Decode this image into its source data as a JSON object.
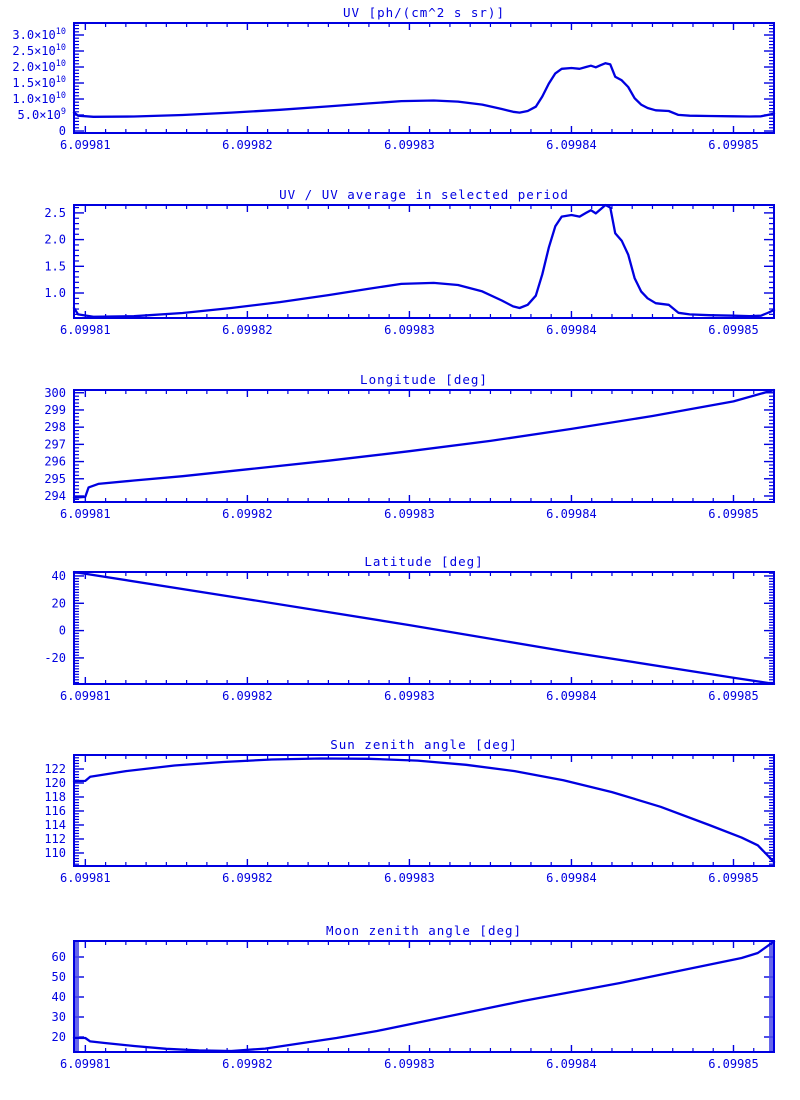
{
  "accent_color": "#0000e0",
  "background_color": "#ffffff",
  "chart_data": [
    {
      "type": "line",
      "title": "UV [ph/(cm^2 s sr)]",
      "xlabel": "",
      "ylabel": "",
      "xlim": [
        6.0998093,
        6.0998525
      ],
      "ylim": [
        -620000000.0,
        33750000000.0
      ],
      "xticks": {
        "major": [
          6.09981,
          6.09982,
          6.09983,
          6.09984,
          6.09985
        ],
        "labels": [
          "6.09981",
          "6.09982",
          "6.09983",
          "6.09984",
          "6.09985"
        ],
        "minor_per_major": 8
      },
      "yticks": {
        "major": [
          0,
          5000000000.0,
          10000000000.0,
          15000000000.0,
          20000000000.0,
          25000000000.0,
          30000000000.0
        ],
        "labels": [
          "0",
          "5.0×10^9",
          "1.0×10^10",
          "1.5×10^10",
          "2.0×10^10",
          "2.5×10^10",
          "3.0×10^10"
        ],
        "minor_step": 1000000000.0
      },
      "series": [
        {
          "name": "UV",
          "points": [
            [
              6.0998093,
              5760000000.0
            ],
            [
              6.09980955,
              4800000000.0
            ],
            [
              6.0998105,
              4440000000.0
            ],
            [
              6.099813,
              4520000000.0
            ],
            [
              6.099816,
              5000000000.0
            ],
            [
              6.099819,
              5760000000.0
            ],
            [
              6.099822,
              6640000000.0
            ],
            [
              6.099825,
              7680000000.0
            ],
            [
              6.0998275,
              8640000000.0
            ],
            [
              6.0998295,
              9360000000.0
            ],
            [
              6.0998315,
              9520000000.0
            ],
            [
              6.099833,
              9200000000.0
            ],
            [
              6.0998345,
              8240000000.0
            ],
            [
              6.0998357,
              6880000000.0
            ],
            [
              6.0998364,
              6000000000.0
            ],
            [
              6.0998368,
              5760000000.0
            ],
            [
              6.0998373,
              6240000000.0
            ],
            [
              6.0998378,
              7600000000.0
            ],
            [
              6.0998382,
              10800000000.0
            ],
            [
              6.0998386,
              14800000000.0
            ],
            [
              6.099839,
              18000000000.0
            ],
            [
              6.0998394,
              19440000000.0
            ],
            [
              6.09984,
              19680000000.0
            ],
            [
              6.0998405,
              19440000000.0
            ],
            [
              6.0998409,
              20000000000.0
            ],
            [
              6.0998412,
              20400000000.0
            ],
            [
              6.0998415,
              19920000000.0
            ],
            [
              6.0998418,
              20560000000.0
            ],
            [
              6.0998421,
              21200000000.0
            ],
            [
              6.0998424,
              20800000000.0
            ],
            [
              6.0998427,
              16960000000.0
            ],
            [
              6.0998431,
              15840000000.0
            ],
            [
              6.0998435,
              13760000000.0
            ],
            [
              6.0998439,
              10240000000.0
            ],
            [
              6.0998443,
              8240000000.0
            ],
            [
              6.0998447,
              7200000000.0
            ],
            [
              6.0998452,
              6480000000.0
            ],
            [
              6.099846,
              6240000000.0
            ],
            [
              6.0998466,
              5040000000.0
            ],
            [
              6.0998473,
              4800000000.0
            ],
            [
              6.0998485,
              4680000000.0
            ],
            [
              6.09985,
              4600000000.0
            ],
            [
              6.099851,
              4520000000.0
            ],
            [
              6.0998517,
              4600000000.0
            ],
            [
              6.0998521,
              5000000000.0
            ],
            [
              6.0998525,
              5440000000.0
            ]
          ]
        }
      ]
    },
    {
      "type": "line",
      "title": "UV / UV average in selected period",
      "xlabel": "",
      "ylabel": "",
      "xlim": [
        6.0998093,
        6.0998525
      ],
      "ylim": [
        0.532,
        2.648
      ],
      "xticks": {
        "major": [
          6.09981,
          6.09982,
          6.09983,
          6.09984,
          6.09985
        ],
        "labels": [
          "6.09981",
          "6.09982",
          "6.09983",
          "6.09984",
          "6.09985"
        ],
        "minor_per_major": 8
      },
      "yticks": {
        "major": [
          1.0,
          1.5,
          2.0,
          2.5
        ],
        "labels": [
          "1.0",
          "1.5",
          "2.0",
          "2.5"
        ],
        "minor_step": 0.1
      },
      "series": [
        {
          "name": "UV ratio",
          "points": [
            [
              6.0998093,
              0.72
            ],
            [
              6.09980955,
              0.6
            ],
            [
              6.0998105,
              0.555
            ],
            [
              6.099813,
              0.565
            ],
            [
              6.099816,
              0.625
            ],
            [
              6.099819,
              0.72
            ],
            [
              6.099822,
              0.83
            ],
            [
              6.099825,
              0.96
            ],
            [
              6.0998275,
              1.08
            ],
            [
              6.0998295,
              1.17
            ],
            [
              6.0998315,
              1.19
            ],
            [
              6.099833,
              1.15
            ],
            [
              6.0998345,
              1.03
            ],
            [
              6.0998357,
              0.86
            ],
            [
              6.0998364,
              0.75
            ],
            [
              6.0998368,
              0.72
            ],
            [
              6.0998373,
              0.78
            ],
            [
              6.0998378,
              0.95
            ],
            [
              6.0998382,
              1.35
            ],
            [
              6.0998386,
              1.85
            ],
            [
              6.099839,
              2.25
            ],
            [
              6.0998394,
              2.43
            ],
            [
              6.09984,
              2.46
            ],
            [
              6.0998405,
              2.43
            ],
            [
              6.0998409,
              2.5
            ],
            [
              6.0998412,
              2.55
            ],
            [
              6.0998415,
              2.49
            ],
            [
              6.0998418,
              2.57
            ],
            [
              6.0998421,
              2.65
            ],
            [
              6.0998424,
              2.6
            ],
            [
              6.0998427,
              2.12
            ],
            [
              6.0998431,
              1.98
            ],
            [
              6.0998435,
              1.72
            ],
            [
              6.0998439,
              1.28
            ],
            [
              6.0998443,
              1.03
            ],
            [
              6.0998447,
              0.9
            ],
            [
              6.0998452,
              0.81
            ],
            [
              6.099846,
              0.78
            ],
            [
              6.0998466,
              0.63
            ],
            [
              6.0998473,
              0.6
            ],
            [
              6.0998485,
              0.585
            ],
            [
              6.09985,
              0.575
            ],
            [
              6.099851,
              0.565
            ],
            [
              6.0998517,
              0.575
            ],
            [
              6.0998521,
              0.625
            ],
            [
              6.0998525,
              0.68
            ]
          ]
        }
      ]
    },
    {
      "type": "line",
      "title": "Longitude [deg]",
      "xlabel": "",
      "ylabel": "",
      "xlim": [
        6.0998093,
        6.0998525
      ],
      "ylim": [
        293.65,
        300.16
      ],
      "xticks": {
        "major": [
          6.09981,
          6.09982,
          6.09983,
          6.09984,
          6.09985
        ],
        "labels": [
          "6.09981",
          "6.09982",
          "6.09983",
          "6.09984",
          "6.09985"
        ],
        "minor_per_major": 8
      },
      "yticks": {
        "major": [
          294,
          295,
          296,
          297,
          298,
          299,
          300
        ],
        "labels": [
          "294",
          "295",
          "296",
          "297",
          "298",
          "299",
          "300"
        ],
        "minor_step": 0.2
      },
      "series": [
        {
          "name": "Longitude",
          "points": [
            [
              6.0998093,
              293.9
            ],
            [
              6.09981,
              293.95
            ],
            [
              6.0998102,
              294.5
            ],
            [
              6.0998108,
              294.7
            ],
            [
              6.099813,
              294.9
            ],
            [
              6.099816,
              295.15
            ],
            [
              6.09982,
              295.55
            ],
            [
              6.099825,
              296.05
            ],
            [
              6.09983,
              296.6
            ],
            [
              6.099835,
              297.2
            ],
            [
              6.09984,
              297.9
            ],
            [
              6.099845,
              298.65
            ],
            [
              6.09985,
              299.5
            ],
            [
              6.0998525,
              300.2
            ]
          ]
        }
      ]
    },
    {
      "type": "line",
      "title": "Latitude [deg]",
      "xlabel": "",
      "ylabel": "",
      "xlim": [
        6.0998093,
        6.0998525
      ],
      "ylim": [
        -39.1,
        42.9
      ],
      "xticks": {
        "major": [
          6.09981,
          6.09982,
          6.09983,
          6.09984,
          6.09985
        ],
        "labels": [
          "6.09981",
          "6.09982",
          "6.09983",
          "6.09984",
          "6.09985"
        ],
        "minor_per_major": 8
      },
      "yticks": {
        "major": [
          -20,
          0,
          20,
          40
        ],
        "labels": [
          "-20",
          "0",
          "20",
          "40"
        ],
        "minor_step": 2
      },
      "series": [
        {
          "name": "Latitude",
          "points": [
            [
              6.0998093,
              43.0
            ],
            [
              6.09982,
              23.0
            ],
            [
              6.09983,
              4.0
            ],
            [
              6.09984,
              -16.0
            ],
            [
              6.09985,
              -34.5
            ],
            [
              6.0998525,
              -39.0
            ]
          ]
        }
      ]
    },
    {
      "type": "line",
      "title": "Sun zenith angle [deg]",
      "xlabel": "",
      "ylabel": "",
      "xlim": [
        6.0998093,
        6.0998525
      ],
      "ylim": [
        108.14,
        124.0
      ],
      "xticks": {
        "major": [
          6.09981,
          6.09982,
          6.09983,
          6.09984,
          6.09985
        ],
        "labels": [
          "6.09981",
          "6.09982",
          "6.09983",
          "6.09984",
          "6.09985"
        ],
        "minor_per_major": 8
      },
      "yticks": {
        "major": [
          110,
          112,
          114,
          116,
          118,
          120,
          122
        ],
        "labels": [
          "110",
          "112",
          "114",
          "116",
          "118",
          "120",
          "122"
        ],
        "minor_step": 0.4
      },
      "series": [
        {
          "name": "Sun zenith angle",
          "points": [
            [
              6.0998093,
              120.25
            ],
            [
              6.09981,
              120.3
            ],
            [
              6.0998103,
              120.9
            ],
            [
              6.0998125,
              121.7
            ],
            [
              6.0998155,
              122.5
            ],
            [
              6.0998185,
              123.0
            ],
            [
              6.0998215,
              123.35
            ],
            [
              6.0998245,
              123.5
            ],
            [
              6.0998275,
              123.45
            ],
            [
              6.0998305,
              123.2
            ],
            [
              6.0998335,
              122.6
            ],
            [
              6.0998365,
              121.7
            ],
            [
              6.0998395,
              120.4
            ],
            [
              6.0998425,
              118.7
            ],
            [
              6.0998455,
              116.6
            ],
            [
              6.0998485,
              114.0
            ],
            [
              6.0998505,
              112.2
            ],
            [
              6.0998515,
              111.1
            ],
            [
              6.0998525,
              108.7
            ]
          ]
        }
      ]
    },
    {
      "type": "line",
      "title": "Moon zenith angle [deg]",
      "xlabel": "",
      "ylabel": "",
      "xlim": [
        6.0998093,
        6.0998525
      ],
      "ylim": [
        12.5,
        68.0
      ],
      "xticks": {
        "major": [
          6.09981,
          6.09982,
          6.09983,
          6.09984,
          6.09985
        ],
        "labels": [
          "6.09981",
          "6.09982",
          "6.09983",
          "6.09984",
          "6.09985"
        ],
        "minor_per_major": 8
      },
      "yticks": {
        "major": [
          20,
          30,
          40,
          50,
          60
        ],
        "labels": [
          "20",
          "30",
          "40",
          "50",
          "60"
        ],
        "minor_step": 1
      },
      "series": [
        {
          "name": "Moon zenith angle",
          "points": [
            [
              6.0998093,
              19.6
            ],
            [
              6.09981,
              19.5
            ],
            [
              6.0998103,
              17.8
            ],
            [
              6.0998112,
              17.0
            ],
            [
              6.099813,
              15.5
            ],
            [
              6.099815,
              14.1
            ],
            [
              6.099817,
              13.3
            ],
            [
              6.099819,
              13.0
            ],
            [
              6.0998211,
              14.2
            ],
            [
              6.099823,
              16.5
            ],
            [
              6.0998255,
              19.5
            ],
            [
              6.099828,
              23.0
            ],
            [
              6.099831,
              28.0
            ],
            [
              6.099834,
              33.0
            ],
            [
              6.099837,
              38.0
            ],
            [
              6.09984,
              42.5
            ],
            [
              6.099843,
              47.0
            ],
            [
              6.099846,
              52.0
            ],
            [
              6.099849,
              57.0
            ],
            [
              6.0998505,
              59.5
            ],
            [
              6.0998515,
              62.0
            ],
            [
              6.0998525,
              67.8
            ]
          ]
        }
      ]
    }
  ]
}
